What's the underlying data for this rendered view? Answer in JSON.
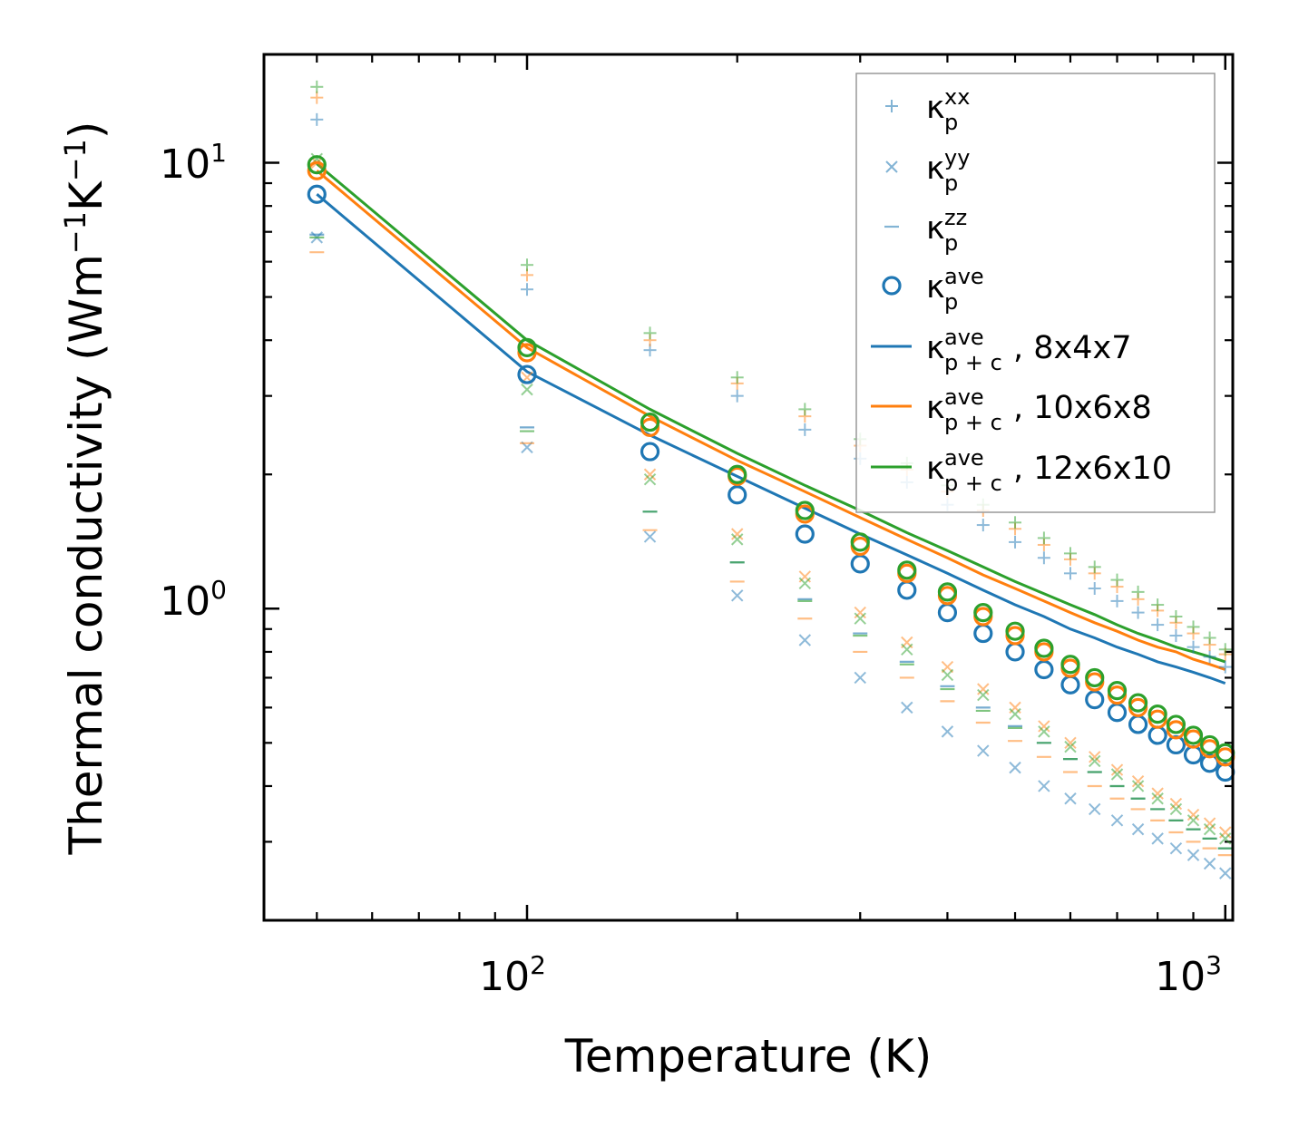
{
  "chart_data": {
    "type": "scatter",
    "xscale": "log",
    "yscale": "log",
    "xlim": [
      42,
      1025
    ],
    "ylim": [
      0.2,
      17.5
    ],
    "xlabel": "Temperature (K)",
    "ylabel": "Thermal conductivity (Wm",
    "ylabel_exp1": "−1",
    "ylabel_mid": "K",
    "ylabel_exp2": "−1",
    "ylabel_end": ")",
    "x_ticks": [
      {
        "base": "10",
        "exp": "2",
        "value": 100
      },
      {
        "base": "10",
        "exp": "3",
        "value": 1000
      }
    ],
    "y_ticks": [
      {
        "base": "10",
        "exp": "0",
        "value": 1
      },
      {
        "base": "10",
        "exp": "1",
        "value": 10
      }
    ],
    "colors": {
      "blue": "#1f77b4",
      "orange": "#ff7f0e",
      "green": "#2ca02c"
    },
    "temperatures": [
      50,
      100,
      150,
      200,
      250,
      300,
      350,
      400,
      450,
      500,
      550,
      600,
      650,
      700,
      750,
      800,
      850,
      900,
      950,
      1000
    ],
    "scatter": [
      {
        "name": "kxx 8x4x7",
        "marker": "plus",
        "color": "#1f77b4",
        "alpha": 0.5,
        "values": [
          12.5,
          5.2,
          3.8,
          3.0,
          2.52,
          2.17,
          1.92,
          1.71,
          1.54,
          1.41,
          1.3,
          1.2,
          1.11,
          1.04,
          0.98,
          0.92,
          0.87,
          0.82,
          0.78,
          0.74
        ]
      },
      {
        "name": "kxx 10x6x8",
        "marker": "plus",
        "color": "#ff7f0e",
        "alpha": 0.5,
        "values": [
          14.0,
          5.6,
          4.0,
          3.2,
          2.7,
          2.32,
          2.05,
          1.83,
          1.66,
          1.51,
          1.39,
          1.29,
          1.2,
          1.12,
          1.05,
          0.99,
          0.93,
          0.88,
          0.83,
          0.79
        ]
      },
      {
        "name": "kxx 12x6x10",
        "marker": "plus",
        "color": "#2ca02c",
        "alpha": 0.5,
        "values": [
          14.8,
          5.9,
          4.15,
          3.3,
          2.8,
          2.4,
          2.12,
          1.89,
          1.71,
          1.56,
          1.44,
          1.33,
          1.24,
          1.16,
          1.09,
          1.02,
          0.96,
          0.91,
          0.86,
          0.81
        ]
      },
      {
        "name": "kyy 8x4x7",
        "marker": "x",
        "color": "#1f77b4",
        "alpha": 0.5,
        "values": [
          6.8,
          2.3,
          1.45,
          1.07,
          0.85,
          0.7,
          0.6,
          0.53,
          0.48,
          0.44,
          0.4,
          0.375,
          0.355,
          0.335,
          0.32,
          0.305,
          0.29,
          0.28,
          0.268,
          0.255
        ]
      },
      {
        "name": "kyy 10x6x8",
        "marker": "x",
        "color": "#ff7f0e",
        "alpha": 0.5,
        "values": [
          10.0,
          3.3,
          2.0,
          1.47,
          1.18,
          0.98,
          0.84,
          0.74,
          0.66,
          0.6,
          0.545,
          0.5,
          0.465,
          0.435,
          0.41,
          0.385,
          0.365,
          0.345,
          0.33,
          0.315
        ]
      },
      {
        "name": "kyy 12x6x10",
        "marker": "x",
        "color": "#2ca02c",
        "alpha": 0.5,
        "values": [
          10.2,
          3.1,
          1.95,
          1.43,
          1.14,
          0.95,
          0.81,
          0.71,
          0.64,
          0.58,
          0.53,
          0.49,
          0.455,
          0.425,
          0.4,
          0.375,
          0.355,
          0.335,
          0.32,
          0.305
        ]
      },
      {
        "name": "kzz 8x4x7",
        "marker": "dash",
        "color": "#1f77b4",
        "alpha": 0.6,
        "values": [
          6.9,
          2.55,
          1.65,
          1.27,
          1.05,
          0.88,
          0.76,
          0.67,
          0.6,
          0.545,
          0.5,
          0.46,
          0.43,
          0.4,
          0.375,
          0.355,
          0.335,
          0.32,
          0.305,
          0.29
        ]
      },
      {
        "name": "kzz 10x6x8",
        "marker": "dash",
        "color": "#ff7f0e",
        "alpha": 0.5,
        "values": [
          6.3,
          2.35,
          1.5,
          1.15,
          0.95,
          0.8,
          0.7,
          0.62,
          0.555,
          0.505,
          0.465,
          0.43,
          0.4,
          0.375,
          0.355,
          0.335,
          0.315,
          0.3,
          0.29,
          0.28
        ]
      },
      {
        "name": "kzz 12x6x10",
        "marker": "dash",
        "color": "#2ca02c",
        "alpha": 0.6,
        "values": [
          6.8,
          2.5,
          1.65,
          1.27,
          1.04,
          0.87,
          0.75,
          0.66,
          0.59,
          0.54,
          0.5,
          0.46,
          0.43,
          0.4,
          0.375,
          0.355,
          0.335,
          0.32,
          0.305,
          0.29
        ]
      },
      {
        "name": "kave 8x4x7",
        "marker": "circle",
        "color": "#1f77b4",
        "alpha": 1,
        "values": [
          8.5,
          3.35,
          2.25,
          1.8,
          1.47,
          1.26,
          1.1,
          0.98,
          0.88,
          0.8,
          0.73,
          0.675,
          0.625,
          0.585,
          0.55,
          0.52,
          0.495,
          0.47,
          0.45,
          0.43
        ]
      },
      {
        "name": "kave 10x6x8",
        "marker": "circle",
        "color": "#ff7f0e",
        "alpha": 1,
        "values": [
          9.6,
          3.75,
          2.55,
          1.98,
          1.63,
          1.38,
          1.2,
          1.07,
          0.96,
          0.87,
          0.8,
          0.735,
          0.685,
          0.64,
          0.6,
          0.565,
          0.535,
          0.51,
          0.485,
          0.465
        ]
      },
      {
        "name": "kave 12x6x10",
        "marker": "circle",
        "color": "#2ca02c",
        "alpha": 1,
        "values": [
          9.9,
          3.85,
          2.62,
          2.0,
          1.66,
          1.41,
          1.22,
          1.09,
          0.98,
          0.89,
          0.815,
          0.75,
          0.7,
          0.655,
          0.615,
          0.58,
          0.55,
          0.52,
          0.495,
          0.475
        ]
      }
    ],
    "lines": [
      {
        "name": "8x4x7",
        "color": "#1f77b4",
        "values": [
          8.5,
          3.4,
          2.45,
          1.98,
          1.68,
          1.47,
          1.32,
          1.2,
          1.1,
          1.02,
          0.96,
          0.9,
          0.86,
          0.82,
          0.79,
          0.76,
          0.74,
          0.72,
          0.7,
          0.68
        ]
      },
      {
        "name": "10x6x8",
        "color": "#ff7f0e",
        "values": [
          9.6,
          3.85,
          2.7,
          2.15,
          1.83,
          1.6,
          1.43,
          1.3,
          1.19,
          1.11,
          1.04,
          0.98,
          0.93,
          0.89,
          0.85,
          0.82,
          0.8,
          0.77,
          0.75,
          0.73
        ]
      },
      {
        "name": "12x6x10",
        "color": "#2ca02c",
        "values": [
          9.95,
          4.0,
          2.8,
          2.23,
          1.89,
          1.66,
          1.48,
          1.35,
          1.24,
          1.15,
          1.08,
          1.02,
          0.97,
          0.92,
          0.88,
          0.85,
          0.82,
          0.8,
          0.78,
          0.76
        ]
      }
    ],
    "legend": {
      "position": "top-right",
      "entries": [
        {
          "marker": "plus",
          "color": "#1f77b4",
          "sym": "κ",
          "sup": "xx",
          "sub": "p",
          "suffix": ""
        },
        {
          "marker": "x",
          "color": "#1f77b4",
          "sym": "κ",
          "sup": "yy",
          "sub": "p",
          "suffix": ""
        },
        {
          "marker": "dash",
          "color": "#1f77b4",
          "sym": "κ",
          "sup": "zz",
          "sub": "p",
          "suffix": ""
        },
        {
          "marker": "circle",
          "color": "#1f77b4",
          "sym": "κ",
          "sup": "ave",
          "sub": "p",
          "suffix": ""
        },
        {
          "marker": "line",
          "color": "#1f77b4",
          "sym": "κ",
          "sup": "ave",
          "sub": "p + c",
          "suffix": ", 8x4x7"
        },
        {
          "marker": "line",
          "color": "#ff7f0e",
          "sym": "κ",
          "sup": "ave",
          "sub": "p + c",
          "suffix": ", 10x6x8"
        },
        {
          "marker": "line",
          "color": "#2ca02c",
          "sym": "κ",
          "sup": "ave",
          "sub": "p + c",
          "suffix": ", 12x6x10"
        }
      ]
    }
  }
}
